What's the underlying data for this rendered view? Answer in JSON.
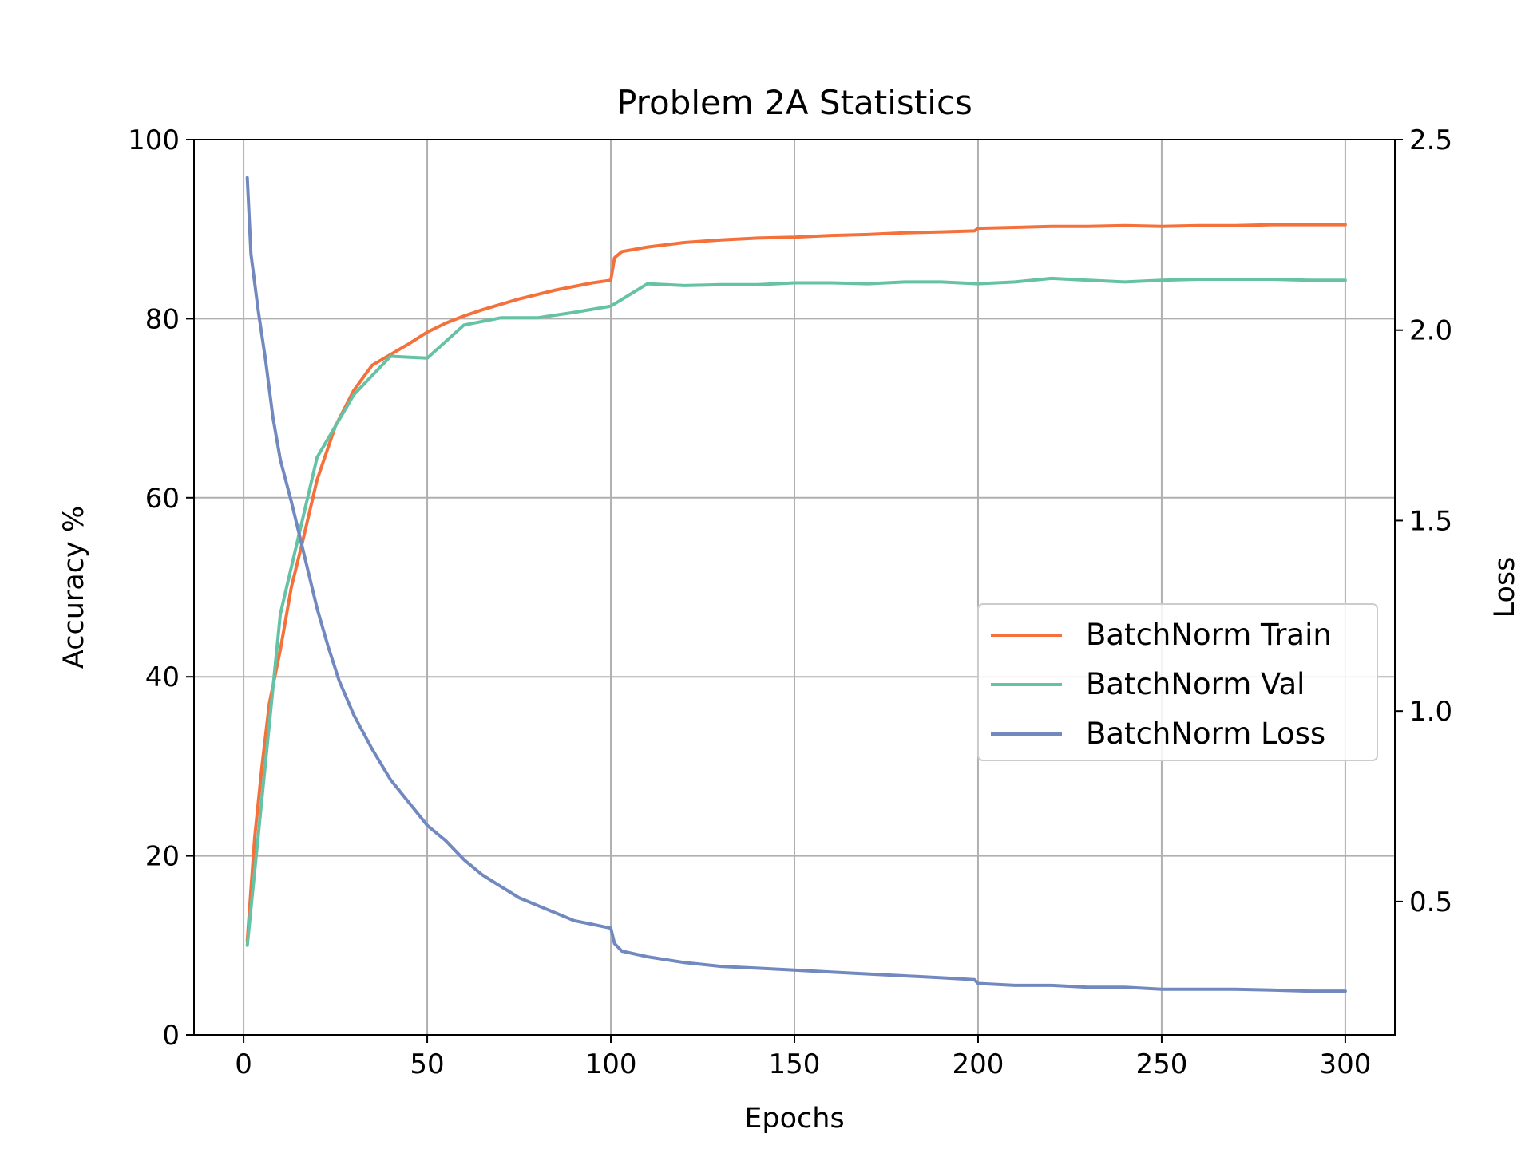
{
  "chart_data": {
    "type": "line",
    "title": "Problem 2A Statistics",
    "xlabel": "Epochs",
    "ylabel": "Accuracy %",
    "y2label": "Loss",
    "xlim": [
      -13.5,
      313.5
    ],
    "ylim": [
      0,
      100
    ],
    "y2lim": [
      0.15,
      2.5
    ],
    "xticks": [
      0,
      50,
      100,
      150,
      200,
      250,
      300
    ],
    "yticks": [
      0,
      20,
      40,
      60,
      80,
      100
    ],
    "y2ticks": [
      0.5,
      1.0,
      1.5,
      2.0,
      2.5
    ],
    "y2tick_labels": [
      "0.5",
      "1.0",
      "1.5",
      "2.0",
      "2.5"
    ],
    "grid": true,
    "legend_position": "center-right",
    "series": [
      {
        "name": "BatchNorm Train",
        "axis": "left",
        "color": "#f5713b",
        "points": [
          [
            1,
            10.5
          ],
          [
            3,
            22
          ],
          [
            5,
            30
          ],
          [
            7,
            37
          ],
          [
            10,
            43
          ],
          [
            13,
            50
          ],
          [
            16,
            55
          ],
          [
            20,
            62
          ],
          [
            25,
            68
          ],
          [
            30,
            72
          ],
          [
            35,
            74.8
          ],
          [
            40,
            76
          ],
          [
            45,
            77.2
          ],
          [
            50,
            78.5
          ],
          [
            55,
            79.5
          ],
          [
            60,
            80.3
          ],
          [
            65,
            81
          ],
          [
            70,
            81.6
          ],
          [
            75,
            82.2
          ],
          [
            80,
            82.7
          ],
          [
            85,
            83.2
          ],
          [
            90,
            83.6
          ],
          [
            95,
            84
          ],
          [
            100,
            84.3
          ],
          [
            101,
            86.8
          ],
          [
            103,
            87.5
          ],
          [
            110,
            88
          ],
          [
            120,
            88.5
          ],
          [
            130,
            88.8
          ],
          [
            140,
            89
          ],
          [
            150,
            89.1
          ],
          [
            160,
            89.3
          ],
          [
            170,
            89.4
          ],
          [
            180,
            89.6
          ],
          [
            190,
            89.7
          ],
          [
            199,
            89.8
          ],
          [
            200,
            90.1
          ],
          [
            210,
            90.2
          ],
          [
            220,
            90.3
          ],
          [
            230,
            90.3
          ],
          [
            240,
            90.4
          ],
          [
            250,
            90.3
          ],
          [
            260,
            90.4
          ],
          [
            270,
            90.4
          ],
          [
            280,
            90.5
          ],
          [
            290,
            90.5
          ],
          [
            300,
            90.5
          ]
        ]
      },
      {
        "name": "BatchNorm Val",
        "axis": "left",
        "color": "#66c2a5",
        "points": [
          [
            1,
            10
          ],
          [
            10,
            47
          ],
          [
            20,
            64.5
          ],
          [
            30,
            71.5
          ],
          [
            40,
            75.8
          ],
          [
            50,
            75.6
          ],
          [
            60,
            79.3
          ],
          [
            70,
            80.1
          ],
          [
            80,
            80.1
          ],
          [
            90,
            80.7
          ],
          [
            100,
            81.4
          ],
          [
            110,
            83.9
          ],
          [
            120,
            83.7
          ],
          [
            130,
            83.8
          ],
          [
            140,
            83.8
          ],
          [
            150,
            84
          ],
          [
            160,
            84
          ],
          [
            170,
            83.9
          ],
          [
            180,
            84.1
          ],
          [
            190,
            84.1
          ],
          [
            200,
            83.9
          ],
          [
            210,
            84.1
          ],
          [
            220,
            84.5
          ],
          [
            230,
            84.3
          ],
          [
            240,
            84.1
          ],
          [
            250,
            84.3
          ],
          [
            260,
            84.4
          ],
          [
            270,
            84.4
          ],
          [
            280,
            84.4
          ],
          [
            290,
            84.3
          ],
          [
            300,
            84.3
          ]
        ]
      },
      {
        "name": "BatchNorm Loss",
        "axis": "right",
        "color": "#7289c0",
        "points": [
          [
            1,
            2.4
          ],
          [
            2,
            2.2
          ],
          [
            4,
            2.05
          ],
          [
            6,
            1.92
          ],
          [
            8,
            1.77
          ],
          [
            10,
            1.66
          ],
          [
            13,
            1.55
          ],
          [
            16,
            1.43
          ],
          [
            20,
            1.27
          ],
          [
            23,
            1.17
          ],
          [
            26,
            1.08
          ],
          [
            30,
            0.99
          ],
          [
            35,
            0.9
          ],
          [
            40,
            0.82
          ],
          [
            45,
            0.76
          ],
          [
            50,
            0.7
          ],
          [
            55,
            0.66
          ],
          [
            60,
            0.61
          ],
          [
            65,
            0.57
          ],
          [
            70,
            0.54
          ],
          [
            75,
            0.51
          ],
          [
            80,
            0.49
          ],
          [
            85,
            0.47
          ],
          [
            90,
            0.45
          ],
          [
            95,
            0.44
          ],
          [
            100,
            0.43
          ],
          [
            101,
            0.39
          ],
          [
            103,
            0.37
          ],
          [
            110,
            0.355
          ],
          [
            120,
            0.34
          ],
          [
            130,
            0.33
          ],
          [
            140,
            0.325
          ],
          [
            150,
            0.32
          ],
          [
            160,
            0.315
          ],
          [
            170,
            0.31
          ],
          [
            180,
            0.305
          ],
          [
            190,
            0.3
          ],
          [
            199,
            0.295
          ],
          [
            200,
            0.285
          ],
          [
            210,
            0.28
          ],
          [
            220,
            0.28
          ],
          [
            230,
            0.275
          ],
          [
            240,
            0.275
          ],
          [
            250,
            0.27
          ],
          [
            260,
            0.27
          ],
          [
            270,
            0.27
          ],
          [
            280,
            0.268
          ],
          [
            290,
            0.265
          ],
          [
            300,
            0.265
          ]
        ]
      }
    ]
  }
}
